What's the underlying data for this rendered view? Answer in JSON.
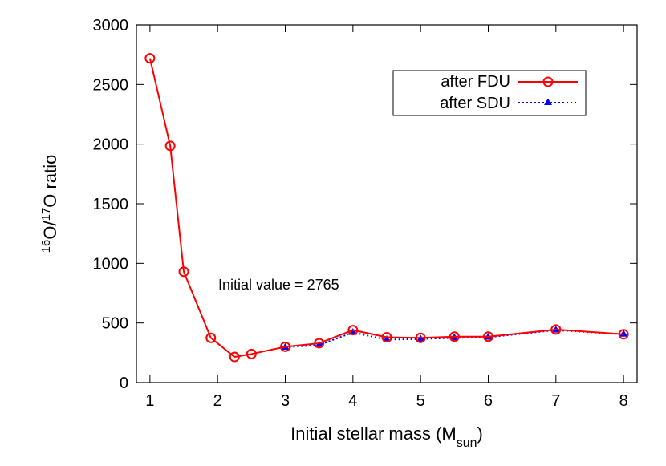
{
  "chart_data": {
    "type": "line",
    "xlabel_main": "Initial stellar mass (M",
    "xlabel_sub": "sun",
    "xlabel_end": ")",
    "ylabel_sup1": "16",
    "ylabel_mid": "O/",
    "ylabel_sup2": "17",
    "ylabel_end": "O ratio",
    "xlim": [
      0.8,
      8.2
    ],
    "ylim": [
      0,
      3000
    ],
    "xticks": [
      1,
      2,
      3,
      4,
      5,
      6,
      7,
      8
    ],
    "yticks": [
      0,
      500,
      1000,
      1500,
      2000,
      2500,
      3000
    ],
    "grid": false,
    "legend_position": "top-right",
    "annotation": "Initial value = 2765",
    "series": [
      {
        "name": "after FDU",
        "color": "#ff0000",
        "line_style": "solid",
        "marker": "open-circle",
        "x": [
          1,
          1.3,
          1.5,
          1.9,
          2.25,
          2.5,
          3,
          3.5,
          4,
          4.5,
          5,
          5.5,
          6,
          7,
          8
        ],
        "y": [
          2720,
          1985,
          930,
          375,
          215,
          240,
          300,
          330,
          440,
          380,
          375,
          385,
          385,
          445,
          405
        ]
      },
      {
        "name": "after SDU",
        "color": "#0000ff",
        "line_style": "dotted",
        "marker": "filled-triangle",
        "x": [
          3,
          3.5,
          4,
          4.5,
          5,
          5.5,
          6,
          7,
          8
        ],
        "y": [
          295,
          315,
          420,
          360,
          365,
          375,
          380,
          440,
          405
        ]
      }
    ]
  }
}
